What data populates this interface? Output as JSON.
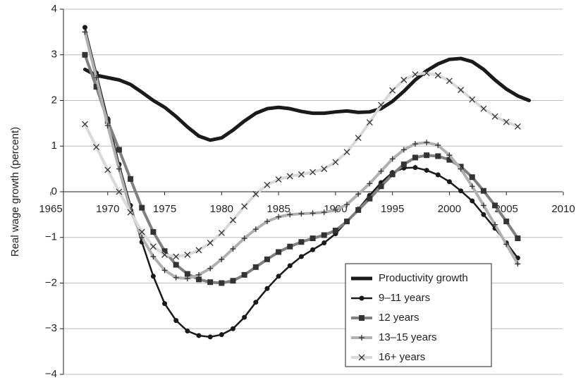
{
  "chart_data": {
    "type": "line",
    "y_label": "Real wage growth (percent)",
    "x": [
      1968,
      1969,
      1970,
      1971,
      1972,
      1973,
      1974,
      1975,
      1976,
      1977,
      1978,
      1979,
      1980,
      1981,
      1982,
      1983,
      1984,
      1985,
      1986,
      1987,
      1988,
      1989,
      1990,
      1991,
      1992,
      1993,
      1994,
      1995,
      1996,
      1997,
      1998,
      1999,
      2000,
      2001,
      2002,
      2003,
      2004,
      2005,
      2006,
      2007
    ],
    "series": [
      {
        "name": "Productivity growth",
        "color": "#1a1a1a",
        "width": 5,
        "marker": "none",
        "values": [
          2.68,
          2.55,
          2.5,
          2.45,
          2.35,
          2.18,
          2.0,
          1.85,
          1.65,
          1.42,
          1.22,
          1.13,
          1.18,
          1.35,
          1.55,
          1.72,
          1.82,
          1.85,
          1.82,
          1.76,
          1.72,
          1.72,
          1.75,
          1.77,
          1.74,
          1.75,
          1.82,
          1.98,
          2.2,
          2.45,
          2.65,
          2.8,
          2.9,
          2.92,
          2.85,
          2.68,
          2.45,
          2.25,
          2.1,
          2.0
        ]
      },
      {
        "name": "9–11 years",
        "color": "#1a1a1a",
        "width": 2.5,
        "marker": "circle",
        "values": [
          3.6,
          2.6,
          1.6,
          0.6,
          -0.3,
          -1.1,
          -1.85,
          -2.45,
          -2.82,
          -3.05,
          -3.15,
          -3.18,
          -3.13,
          -3.0,
          -2.75,
          -2.42,
          -2.12,
          -1.85,
          -1.62,
          -1.42,
          -1.27,
          -1.12,
          -0.92,
          -0.65,
          -0.38,
          -0.08,
          0.2,
          0.42,
          0.52,
          0.53,
          0.47,
          0.37,
          0.22,
          0.02,
          -0.2,
          -0.5,
          -0.8,
          -1.12,
          -1.45,
          null
        ]
      },
      {
        "name": "12 years",
        "color": "#808080",
        "width": 4,
        "marker": "square",
        "values": [
          3.0,
          2.3,
          1.55,
          0.92,
          0.28,
          -0.35,
          -0.88,
          -1.3,
          -1.6,
          -1.8,
          -1.92,
          -1.98,
          -2.0,
          -1.95,
          -1.82,
          -1.65,
          -1.48,
          -1.32,
          -1.2,
          -1.1,
          -1.02,
          -0.95,
          -0.85,
          -0.65,
          -0.4,
          -0.15,
          0.12,
          0.38,
          0.6,
          0.75,
          0.8,
          0.78,
          0.7,
          0.55,
          0.32,
          0.02,
          -0.3,
          -0.65,
          -1.02,
          null
        ]
      },
      {
        "name": "13–15 years",
        "color": "#b0b0b0",
        "width": 4,
        "marker": "plus",
        "values": [
          3.5,
          2.5,
          1.45,
          0.5,
          -0.4,
          -1.0,
          -1.42,
          -1.72,
          -1.88,
          -1.9,
          -1.82,
          -1.68,
          -1.48,
          -1.25,
          -1.02,
          -0.82,
          -0.65,
          -0.55,
          -0.5,
          -0.48,
          -0.47,
          -0.45,
          -0.4,
          -0.28,
          -0.05,
          0.18,
          0.45,
          0.72,
          0.92,
          1.05,
          1.08,
          1.02,
          0.8,
          0.5,
          0.12,
          -0.3,
          -0.72,
          -1.15,
          -1.58,
          null
        ]
      },
      {
        "name": "16+ years",
        "color": "#d9d9d9",
        "width": 4,
        "marker": "cross",
        "values": [
          1.48,
          0.98,
          0.48,
          0.0,
          -0.45,
          -0.88,
          -1.2,
          -1.38,
          -1.42,
          -1.38,
          -1.28,
          -1.12,
          -0.9,
          -0.62,
          -0.32,
          -0.05,
          0.15,
          0.27,
          0.34,
          0.38,
          0.43,
          0.5,
          0.65,
          0.87,
          1.18,
          1.52,
          1.9,
          2.22,
          2.45,
          2.57,
          2.6,
          2.55,
          2.43,
          2.23,
          2.02,
          1.82,
          1.65,
          1.53,
          1.43,
          null
        ]
      }
    ],
    "xlim": [
      1965,
      2010
    ],
    "xticks": [
      1965,
      1970,
      1975,
      1980,
      1985,
      1990,
      1995,
      2000,
      2005,
      2010
    ],
    "ylim": [
      -4,
      4
    ],
    "yticks": [
      {
        "value": -4,
        "label": "−4"
      },
      {
        "value": -3,
        "label": "−3"
      },
      {
        "value": -2,
        "label": "−2"
      },
      {
        "value": -1,
        "label": "−1"
      },
      0,
      1,
      2,
      3,
      4
    ],
    "grid": true,
    "legend": "lower right"
  }
}
